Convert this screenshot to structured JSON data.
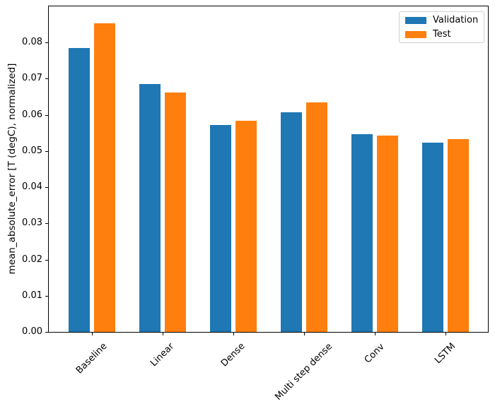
{
  "figure": {
    "background": "#ffffff",
    "spine_color": "#000000"
  },
  "chart_data": {
    "type": "bar",
    "title": "",
    "xlabel": "",
    "ylabel": "mean_absolute_error [T (degC), normalized]",
    "categories": [
      "Baseline",
      "Linear",
      "Dense",
      "Multi step dense",
      "Conv",
      "LSTM"
    ],
    "series": [
      {
        "name": "Validation",
        "color": "#1f77b4",
        "values": [
          0.0785,
          0.0686,
          0.0573,
          0.0607,
          0.0546,
          0.0523
        ]
      },
      {
        "name": "Test",
        "color": "#ff7f0e",
        "values": [
          0.0854,
          0.0662,
          0.0584,
          0.0634,
          0.0543,
          0.0533
        ]
      }
    ],
    "ylim": [
      0,
      0.09
    ],
    "yticks": [
      0,
      0.01,
      0.02,
      0.03,
      0.04,
      0.05,
      0.06,
      0.07,
      0.08
    ],
    "ytick_labels": [
      "0.00",
      "0.01",
      "0.02",
      "0.03",
      "0.04",
      "0.05",
      "0.06",
      "0.07",
      "0.08"
    ],
    "xtick_rotation": 45,
    "grid": false,
    "legend": {
      "position": "upper right",
      "entries": [
        "Validation",
        "Test"
      ]
    }
  }
}
